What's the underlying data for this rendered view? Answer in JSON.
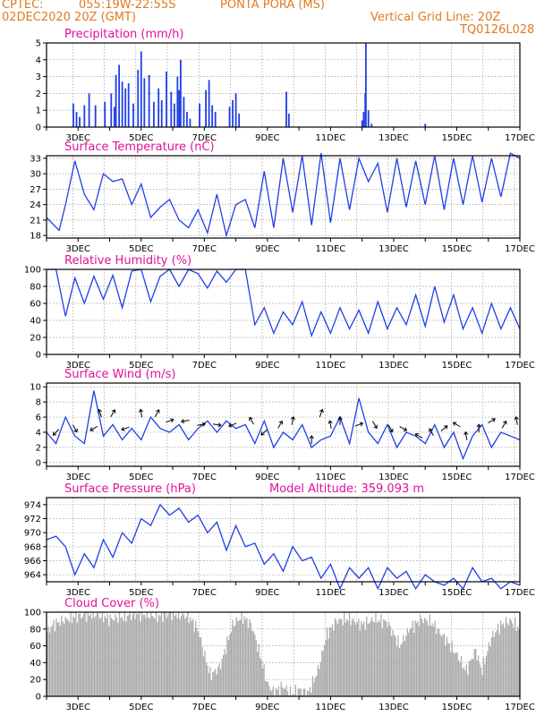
{
  "header": {
    "line1_left": "CPTEC:",
    "location": "055:19W-22:55S",
    "station": "PONTA PORA (MS)",
    "datetime": "02DEC2020 20Z (GMT)",
    "grid_note": "Vertical Grid Line: 20Z",
    "code": "TQ0126L028"
  },
  "colors": {
    "header": "#e07b1f",
    "title": "#e0119b",
    "line": "#1f3fe6",
    "cloud": "#aaaaaa",
    "grid": "#9a9a9a"
  },
  "x_ticks": [
    "3DEC",
    "5DEC",
    "7DEC",
    "9DEC",
    "11DEC",
    "13DEC",
    "15DEC",
    "17DEC"
  ],
  "chart_data": [
    {
      "type": "bar",
      "title": "Precipitation (mm/h)",
      "ylim": [
        0,
        5
      ],
      "yticks": [
        0,
        1,
        2,
        3,
        4,
        5
      ],
      "bars": [
        [
          2.85,
          1.4
        ],
        [
          2.95,
          0.9
        ],
        [
          3.05,
          0.6
        ],
        [
          3.2,
          1.3
        ],
        [
          3.35,
          2.0
        ],
        [
          3.55,
          1.3
        ],
        [
          3.85,
          1.5
        ],
        [
          4.05,
          2.0
        ],
        [
          4.15,
          1.2
        ],
        [
          4.2,
          3.1
        ],
        [
          4.3,
          3.7
        ],
        [
          4.4,
          2.7
        ],
        [
          4.5,
          2.3
        ],
        [
          4.6,
          2.6
        ],
        [
          4.75,
          1.4
        ],
        [
          4.9,
          3.4
        ],
        [
          5.0,
          4.5
        ],
        [
          5.1,
          2.9
        ],
        [
          5.25,
          3.1
        ],
        [
          5.4,
          1.5
        ],
        [
          5.55,
          2.3
        ],
        [
          5.65,
          1.6
        ],
        [
          5.8,
          3.3
        ],
        [
          5.95,
          2.1
        ],
        [
          6.05,
          1.4
        ],
        [
          6.15,
          3.0
        ],
        [
          6.2,
          2.2
        ],
        [
          6.25,
          4.0
        ],
        [
          6.35,
          1.8
        ],
        [
          6.45,
          0.9
        ],
        [
          6.55,
          0.5
        ],
        [
          6.85,
          1.4
        ],
        [
          7.05,
          2.2
        ],
        [
          7.15,
          2.8
        ],
        [
          7.25,
          1.3
        ],
        [
          7.35,
          0.9
        ],
        [
          7.8,
          1.2
        ],
        [
          7.9,
          1.6
        ],
        [
          8.0,
          2.0
        ],
        [
          8.1,
          0.8
        ],
        [
          9.6,
          2.1
        ],
        [
          9.68,
          0.8
        ],
        [
          12.0,
          0.4
        ],
        [
          12.05,
          0.9
        ],
        [
          12.1,
          2.0
        ],
        [
          12.12,
          5.0
        ],
        [
          12.2,
          1.0
        ],
        [
          12.3,
          0.2
        ],
        [
          14.0,
          0.2
        ]
      ]
    },
    {
      "type": "line",
      "title": "Surface Temperature (nC)",
      "ylim": [
        17.5,
        33.5
      ],
      "yticks": [
        18,
        21,
        24,
        27,
        30,
        33
      ],
      "x": [
        2.0,
        2.4,
        2.6,
        2.9,
        3.2,
        3.5,
        3.8,
        4.1,
        4.4,
        4.7,
        5.0,
        5.3,
        5.6,
        5.9,
        6.2,
        6.5,
        6.8,
        7.1,
        7.4,
        7.7,
        8.0,
        8.3,
        8.6,
        8.9,
        9.2,
        9.5,
        9.8,
        10.1,
        10.4,
        10.7,
        11.0,
        11.3,
        11.6,
        11.9,
        12.2,
        12.5,
        12.8,
        13.1,
        13.4,
        13.7,
        14.0,
        14.3,
        14.6,
        14.9,
        15.2,
        15.5,
        15.8,
        16.1,
        16.4,
        16.7,
        17.0
      ],
      "y": [
        21.5,
        19.0,
        24.0,
        32.5,
        26.0,
        23.0,
        30.0,
        28.5,
        29.0,
        24.0,
        28.0,
        21.5,
        23.5,
        25.0,
        21.0,
        19.5,
        23.0,
        18.5,
        26.0,
        18.0,
        24.0,
        25.0,
        19.5,
        30.5,
        19.5,
        33.0,
        22.5,
        33.5,
        20.0,
        34.0,
        20.5,
        33.0,
        23.0,
        33.0,
        28.5,
        32.0,
        22.5,
        33.0,
        23.5,
        32.5,
        24.0,
        33.5,
        23.0,
        33.0,
        24.0,
        33.5,
        24.5,
        33.0,
        25.5,
        34.0,
        33.0
      ]
    },
    {
      "type": "line",
      "title": "Relative Humidity (%)",
      "ylim": [
        0,
        100
      ],
      "yticks": [
        0,
        20,
        40,
        60,
        80,
        100
      ],
      "x": [
        2.0,
        2.3,
        2.6,
        2.9,
        3.2,
        3.5,
        3.8,
        4.1,
        4.4,
        4.7,
        5.0,
        5.3,
        5.6,
        5.9,
        6.2,
        6.5,
        6.8,
        7.1,
        7.4,
        7.7,
        8.0,
        8.3,
        8.6,
        8.9,
        9.2,
        9.5,
        9.8,
        10.1,
        10.4,
        10.7,
        11.0,
        11.3,
        11.6,
        11.9,
        12.2,
        12.5,
        12.8,
        13.1,
        13.4,
        13.7,
        14.0,
        14.3,
        14.6,
        14.9,
        15.2,
        15.5,
        15.8,
        16.1,
        16.4,
        16.7,
        17.0
      ],
      "y": [
        100,
        100,
        45,
        90,
        60,
        92,
        65,
        93,
        55,
        98,
        100,
        62,
        92,
        100,
        80,
        100,
        95,
        78,
        98,
        85,
        100,
        100,
        35,
        55,
        25,
        50,
        35,
        62,
        22,
        50,
        25,
        55,
        30,
        52,
        25,
        62,
        30,
        55,
        35,
        70,
        33,
        80,
        38,
        70,
        30,
        55,
        25,
        60,
        30,
        55,
        30
      ]
    },
    {
      "type": "line",
      "title": "Surface Wind (m/s)",
      "ylim": [
        -0.5,
        10.5
      ],
      "yticks": [
        0,
        2,
        4,
        6,
        8,
        10
      ],
      "x": [
        2.0,
        2.3,
        2.6,
        2.9,
        3.2,
        3.5,
        3.8,
        4.1,
        4.4,
        4.7,
        5.0,
        5.3,
        5.6,
        5.9,
        6.2,
        6.5,
        6.8,
        7.1,
        7.4,
        7.7,
        8.0,
        8.3,
        8.6,
        8.9,
        9.2,
        9.5,
        9.8,
        10.1,
        10.4,
        10.7,
        11.0,
        11.3,
        11.6,
        11.9,
        12.2,
        12.5,
        12.8,
        13.1,
        13.4,
        13.7,
        14.0,
        14.3,
        14.6,
        14.9,
        15.2,
        15.5,
        15.8,
        16.1,
        16.4,
        16.7,
        17.0
      ],
      "y": [
        4,
        2.5,
        6,
        3.5,
        2.5,
        9.5,
        3.5,
        5,
        3,
        4.5,
        3,
        6,
        4.5,
        4,
        5,
        3,
        4.5,
        5.5,
        4,
        5.5,
        4.5,
        5,
        2.5,
        5.5,
        2,
        4,
        3,
        5,
        2,
        3,
        3.5,
        6,
        2.5,
        8.5,
        4,
        2.5,
        5,
        2,
        4,
        3.5,
        2.5,
        5,
        2,
        4,
        0.5,
        3.5,
        5,
        2,
        4,
        3.5,
        3
      ],
      "arrows": [
        [
          2.3,
          4,
          225
        ],
        [
          2.9,
          4.5,
          300
        ],
        [
          3.5,
          4.5,
          210
        ],
        [
          3.7,
          6.5,
          110
        ],
        [
          4.1,
          6.5,
          60
        ],
        [
          4.5,
          4.5,
          200
        ],
        [
          5.0,
          6.5,
          100
        ],
        [
          5.5,
          6.5,
          60
        ],
        [
          5.9,
          5.5,
          20
        ],
        [
          6.4,
          5.5,
          190
        ],
        [
          6.9,
          5,
          10
        ],
        [
          7.4,
          5,
          350
        ],
        [
          7.9,
          5,
          200
        ],
        [
          8.5,
          5.5,
          120
        ],
        [
          8.9,
          4,
          220
        ],
        [
          9.4,
          5,
          60
        ],
        [
          9.8,
          5.5,
          80
        ],
        [
          10.4,
          3,
          90
        ],
        [
          10.7,
          6.5,
          70
        ],
        [
          11.0,
          5,
          100
        ],
        [
          11.3,
          5.5,
          90
        ],
        [
          11.9,
          5,
          20
        ],
        [
          12.4,
          5,
          300
        ],
        [
          12.9,
          4.5,
          300
        ],
        [
          13.3,
          4.5,
          330
        ],
        [
          13.8,
          3.5,
          150
        ],
        [
          14.2,
          4,
          120
        ],
        [
          14.6,
          4.5,
          40
        ],
        [
          15.0,
          5,
          150
        ],
        [
          15.3,
          3.5,
          100
        ],
        [
          15.7,
          4.5,
          90
        ],
        [
          16.1,
          5.5,
          30
        ],
        [
          16.5,
          5,
          60
        ],
        [
          16.9,
          5.5,
          100
        ]
      ]
    },
    {
      "type": "line",
      "title": "Surface Pressure (hPa)",
      "annotation": "Model Altitude: 359.093 m",
      "ylim": [
        963.0,
        975.0
      ],
      "yticks": [
        964,
        966,
        968,
        970,
        972,
        974
      ],
      "x": [
        2.0,
        2.3,
        2.6,
        2.9,
        3.2,
        3.5,
        3.8,
        4.1,
        4.4,
        4.7,
        5.0,
        5.3,
        5.6,
        5.9,
        6.2,
        6.5,
        6.8,
        7.1,
        7.4,
        7.7,
        8.0,
        8.3,
        8.6,
        8.9,
        9.2,
        9.5,
        9.8,
        10.1,
        10.4,
        10.7,
        11.0,
        11.3,
        11.6,
        11.9,
        12.2,
        12.5,
        12.8,
        13.1,
        13.4,
        13.7,
        14.0,
        14.3,
        14.6,
        14.9,
        15.2,
        15.5,
        15.8,
        16.1,
        16.4,
        16.7,
        17.0
      ],
      "y": [
        969,
        969.5,
        968,
        964,
        967,
        965,
        969,
        966.5,
        970,
        968.5,
        972,
        971,
        974,
        972.5,
        973.5,
        971.5,
        972.5,
        970,
        971.5,
        967.5,
        971,
        968,
        968.5,
        965.5,
        967,
        964.5,
        968,
        966,
        966.5,
        963.5,
        965.5,
        962,
        965,
        963.5,
        965,
        962,
        965,
        963.5,
        964.5,
        962,
        964,
        963,
        962.5,
        963.5,
        962,
        965,
        963,
        963.5,
        962,
        963,
        962.5
      ]
    },
    {
      "type": "bar",
      "title": "Cloud Cover (%)",
      "ylim": [
        0,
        100
      ],
      "yticks": [
        0,
        20,
        40,
        60,
        80,
        100
      ],
      "x_start": 2.0,
      "x_end": 17.0,
      "profile": [
        [
          2.0,
          75
        ],
        [
          2.2,
          85
        ],
        [
          2.5,
          90
        ],
        [
          3.0,
          95
        ],
        [
          3.5,
          98
        ],
        [
          4.0,
          92
        ],
        [
          4.5,
          95
        ],
        [
          5.0,
          98
        ],
        [
          5.5,
          95
        ],
        [
          6.0,
          98
        ],
        [
          6.5,
          95
        ],
        [
          6.8,
          80
        ],
        [
          7.0,
          50
        ],
        [
          7.2,
          25
        ],
        [
          7.5,
          35
        ],
        [
          7.7,
          60
        ],
        [
          7.9,
          85
        ],
        [
          8.2,
          95
        ],
        [
          8.5,
          85
        ],
        [
          8.8,
          45
        ],
        [
          9.0,
          15
        ],
        [
          9.2,
          5
        ],
        [
          9.5,
          12
        ],
        [
          9.8,
          3
        ],
        [
          10.0,
          8
        ],
        [
          10.3,
          4
        ],
        [
          10.6,
          30
        ],
        [
          10.9,
          75
        ],
        [
          11.2,
          90
        ],
        [
          11.6,
          92
        ],
        [
          12.0,
          85
        ],
        [
          12.4,
          92
        ],
        [
          12.8,
          88
        ],
        [
          13.2,
          60
        ],
        [
          13.5,
          80
        ],
        [
          13.9,
          92
        ],
        [
          14.2,
          88
        ],
        [
          14.6,
          70
        ],
        [
          15.0,
          50
        ],
        [
          15.3,
          30
        ],
        [
          15.6,
          55
        ],
        [
          15.8,
          30
        ],
        [
          16.1,
          70
        ],
        [
          16.4,
          85
        ],
        [
          16.7,
          90
        ],
        [
          17.0,
          80
        ]
      ]
    }
  ]
}
